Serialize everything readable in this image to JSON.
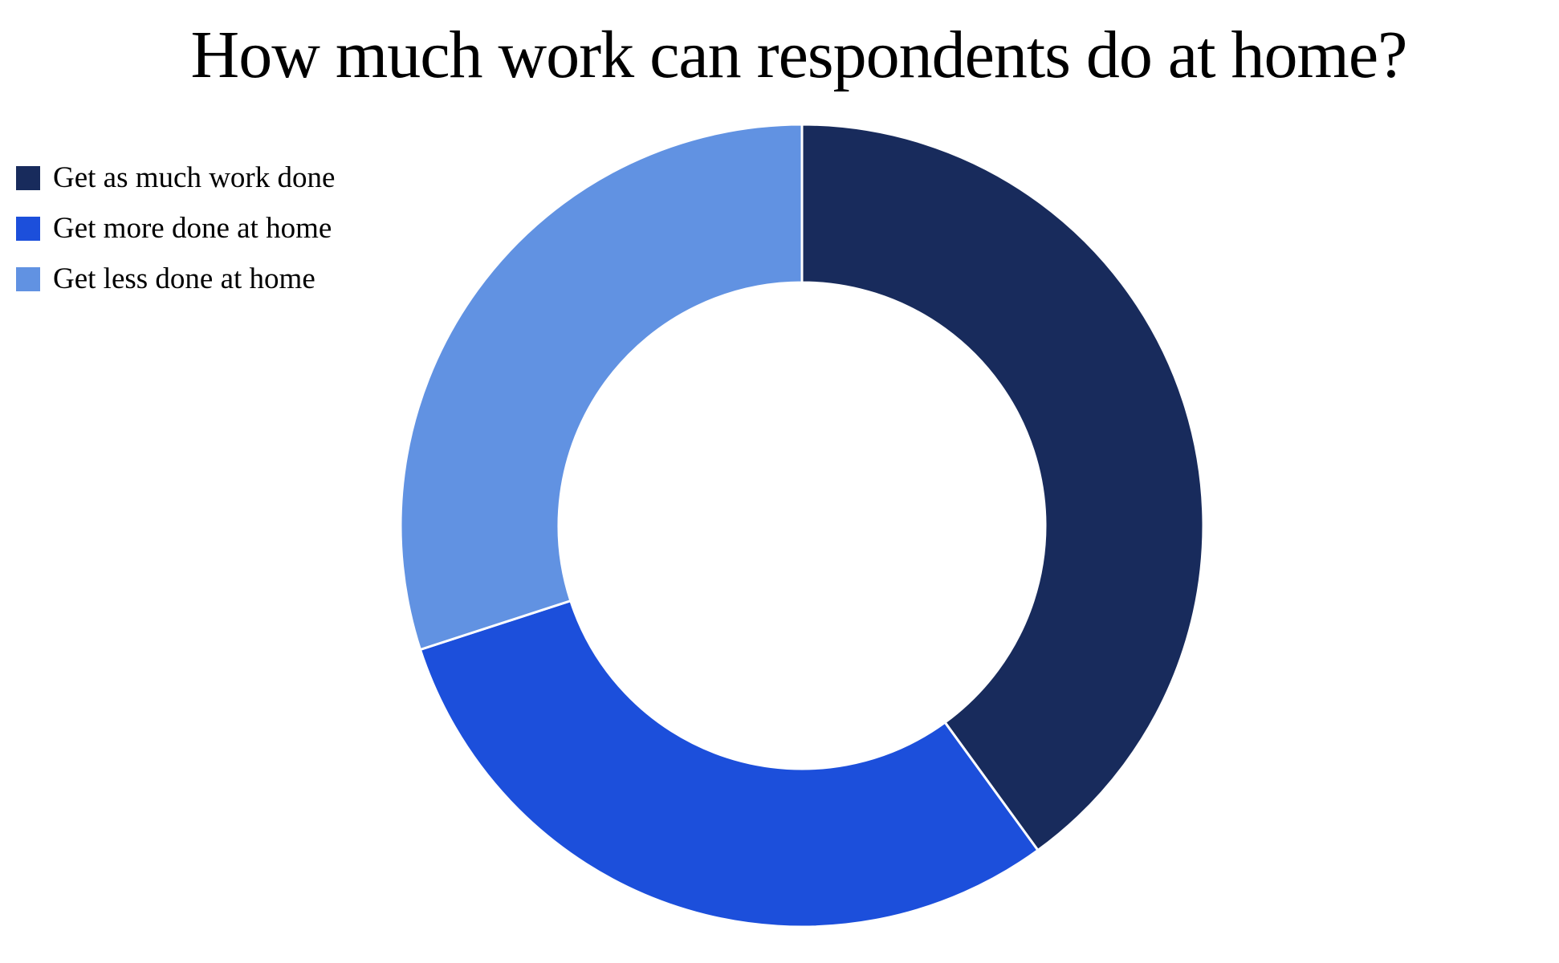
{
  "chart_data": {
    "type": "pie",
    "style": "donut",
    "title": "How much work can respondents do at home?",
    "legend_position": "top-left",
    "series": [
      {
        "name": "Get as much work done",
        "value": 40,
        "color": "#182B5C"
      },
      {
        "name": "Get more done at home",
        "value": 30,
        "color": "#1C4FDB"
      },
      {
        "name": "Get less done at home",
        "value": 30,
        "color": "#6192E2"
      }
    ]
  }
}
